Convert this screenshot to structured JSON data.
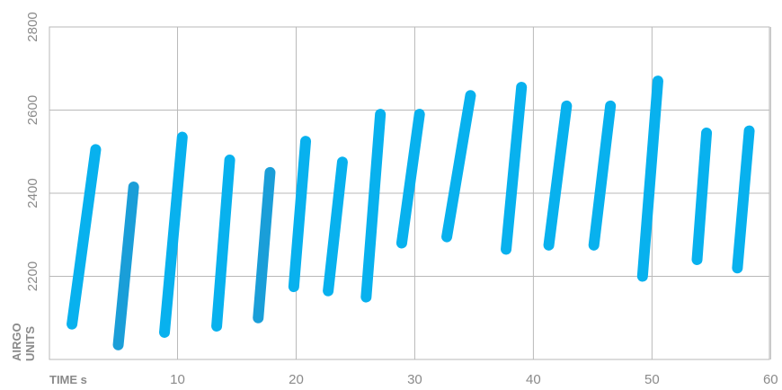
{
  "chart_data": {
    "type": "line",
    "xlabel": "TIME s",
    "ylabel": [
      "AIRGO",
      "UNITS"
    ],
    "xlim": [
      0,
      60
    ],
    "ylim": [
      2000,
      2800
    ],
    "x_ticks": [
      10,
      20,
      30,
      40,
      50,
      60
    ],
    "y_ticks": [
      2200,
      2400,
      2600,
      2800
    ],
    "grid": true,
    "colors": {
      "primary": "#08b1ee",
      "dark": "#1a9ed8",
      "grid": "#b9b9b9",
      "text": "#8a8a8a"
    },
    "segments": [
      {
        "x": [
          1.1,
          3.1
        ],
        "y": [
          2085,
          2505
        ],
        "color": "primary"
      },
      {
        "x": [
          5.0,
          6.3
        ],
        "y": [
          2035,
          2415
        ],
        "color": "dark"
      },
      {
        "x": [
          8.9,
          10.4
        ],
        "y": [
          2065,
          2535
        ],
        "color": "primary"
      },
      {
        "x": [
          13.3,
          14.4
        ],
        "y": [
          2080,
          2480
        ],
        "color": "primary"
      },
      {
        "x": [
          16.8,
          17.8
        ],
        "y": [
          2100,
          2450
        ],
        "color": "dark"
      },
      {
        "x": [
          19.8,
          20.8
        ],
        "y": [
          2175,
          2525
        ],
        "color": "primary"
      },
      {
        "x": [
          22.7,
          23.9
        ],
        "y": [
          2165,
          2475
        ],
        "color": "primary"
      },
      {
        "x": [
          25.9,
          27.1
        ],
        "y": [
          2150,
          2590
        ],
        "color": "primary"
      },
      {
        "x": [
          28.9,
          30.4
        ],
        "y": [
          2280,
          2590
        ],
        "color": "primary"
      },
      {
        "x": [
          32.7,
          34.7
        ],
        "y": [
          2295,
          2635
        ],
        "color": "primary"
      },
      {
        "x": [
          37.7,
          39.0
        ],
        "y": [
          2265,
          2655
        ],
        "color": "primary"
      },
      {
        "x": [
          41.3,
          42.8
        ],
        "y": [
          2275,
          2610
        ],
        "color": "primary"
      },
      {
        "x": [
          45.1,
          46.5
        ],
        "y": [
          2275,
          2610
        ],
        "color": "primary"
      },
      {
        "x": [
          49.2,
          50.5
        ],
        "y": [
          2200,
          2670
        ],
        "color": "primary"
      },
      {
        "x": [
          53.8,
          54.6
        ],
        "y": [
          2240,
          2545
        ],
        "color": "primary"
      },
      {
        "x": [
          57.2,
          58.2
        ],
        "y": [
          2220,
          2550
        ],
        "color": "primary"
      }
    ]
  }
}
